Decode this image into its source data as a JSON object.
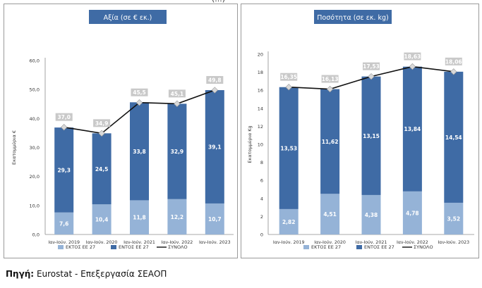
{
  "top_fragment": "(...)",
  "source": {
    "label": "Πηγή:",
    "text": "Eurostat - Επεξεργασία ΣΕΑΟΠ"
  },
  "colors": {
    "outside": "#95b3d7",
    "inside": "#3f6ba5",
    "total": "#111111",
    "title_bg": "#3f6ba5",
    "marker_label_bg": "#c9c9c9"
  },
  "chart_data": [
    {
      "type": "bar",
      "stacked": true,
      "title": "Αξία (σε € εκ.)",
      "ylabel": "Εκατομμύρια €",
      "ylim": [
        0,
        60
      ],
      "yticks": [
        "0,0",
        "10,0",
        "20,0",
        "30,0",
        "40,0",
        "50,0",
        "60,0"
      ],
      "categories": [
        "Ιαν-Ιούν. 2019",
        "Ιαν-Ιούν. 2020",
        "Ιαν-Ιούν. 2021",
        "Ιαν-Ιούν. 2022",
        "Ιαν-Ιούν. 2023"
      ],
      "series": [
        {
          "name": "ΕΚΤΟΣ ΕΕ 27",
          "values": [
            7.6,
            10.4,
            11.8,
            12.2,
            10.7
          ],
          "labels": [
            "7,6",
            "10,4",
            "11,8",
            "12,2",
            "10,7"
          ]
        },
        {
          "name": "ΕΝΤΟΣ ΕΕ 27",
          "values": [
            29.3,
            24.5,
            33.8,
            32.9,
            39.1
          ],
          "labels": [
            "29,3",
            "24,5",
            "33,8",
            "32,9",
            "39,1"
          ]
        }
      ],
      "total": {
        "name": "ΣΥΝΟΛΟ",
        "values": [
          37.0,
          34.9,
          45.5,
          45.1,
          49.8
        ],
        "labels": [
          "37,0",
          "34,9",
          "45,5",
          "45,1",
          "49,8"
        ]
      },
      "legend": "bottom"
    },
    {
      "type": "bar",
      "stacked": true,
      "title": "Ποσότητα (σε εκ. kg)",
      "ylabel": "Εκατομμύρια Kg",
      "ylim": [
        0,
        20
      ],
      "yticks": [
        "0",
        "2",
        "4",
        "6",
        "8",
        "10",
        "12",
        "14",
        "16",
        "18",
        "20"
      ],
      "categories": [
        "Ιαν-Ιούν. 2019",
        "Ιαν-Ιούν. 2020",
        "Ιαν-Ιούν. 2021",
        "Ιαν-Ιούν. 2022",
        "Ιαν-Ιούν. 2023"
      ],
      "series": [
        {
          "name": "ΕΚΤΟΣ ΕΕ 27",
          "values": [
            2.82,
            4.51,
            4.38,
            4.78,
            3.52
          ],
          "labels": [
            "2,82",
            "4,51",
            "4,38",
            "4,78",
            "3,52"
          ]
        },
        {
          "name": "ΕΝΤΟΣ ΕΕ 27",
          "values": [
            13.53,
            11.62,
            13.15,
            13.84,
            14.54
          ],
          "labels": [
            "13,53",
            "11,62",
            "13,15",
            "13,84",
            "14,54"
          ]
        }
      ],
      "total": {
        "name": "ΣΥΝΟΛΟ",
        "values": [
          16.35,
          16.13,
          17.53,
          18.63,
          18.06
        ],
        "labels": [
          "16,35",
          "16,13",
          "17,53",
          "18,63",
          "18,06"
        ]
      },
      "legend": "bottom"
    }
  ]
}
